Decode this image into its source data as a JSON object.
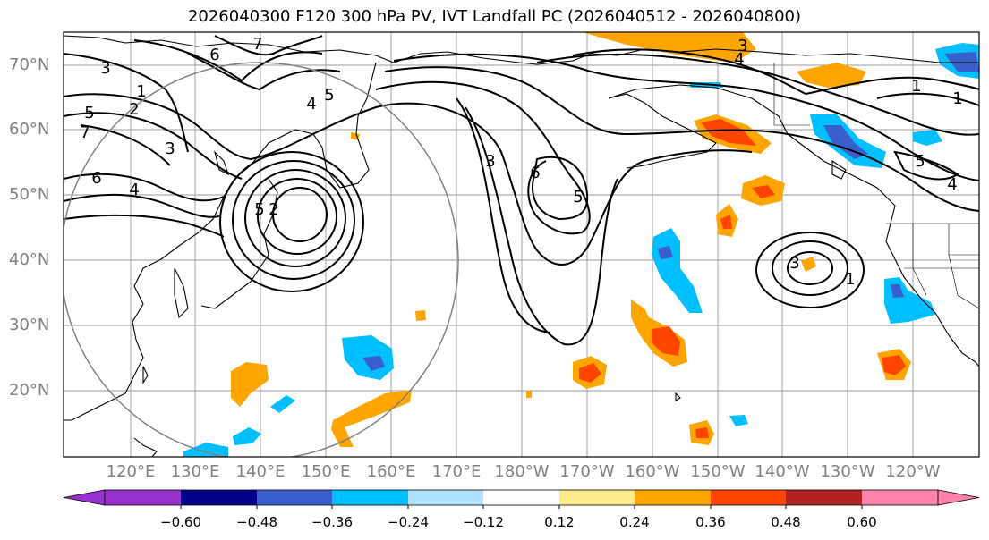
{
  "title": "2026040300 F120 300 hPa PV, IVT Landfall PC (2026040512 - 2026040800)",
  "lat_labels": [
    "70°N",
    "60°N",
    "50°N",
    "40°N",
    "30°N",
    "20°N"
  ],
  "lon_labels": [
    "120°E",
    "130°E",
    "140°E",
    "150°E",
    "160°E",
    "170°E",
    "180°W",
    "170°W",
    "160°W",
    "150°W",
    "140°W",
    "130°W",
    "120°W"
  ],
  "colorbar": {
    "ticks": [
      "−0.60",
      "−0.48",
      "−0.36",
      "−0.24",
      "−0.12",
      "0.12",
      "0.24",
      "0.36",
      "0.48",
      "0.60"
    ],
    "colors": [
      "#9932cc",
      "#00008b",
      "#3a5fcd",
      "#00bfff",
      "#b0e2ff",
      "#ffffff",
      "#ffeb8a",
      "#ffa500",
      "#ff4500",
      "#b22222",
      "#ff82ab"
    ]
  },
  "contour_labels": [
    "6",
    "7",
    "3",
    "1",
    "2",
    "5",
    "3",
    "7",
    "4",
    "5",
    "6",
    "4",
    "5",
    "3",
    "6",
    "5",
    "3",
    "2",
    "1",
    "4",
    "1",
    "5",
    "4",
    "3",
    "1"
  ]
}
